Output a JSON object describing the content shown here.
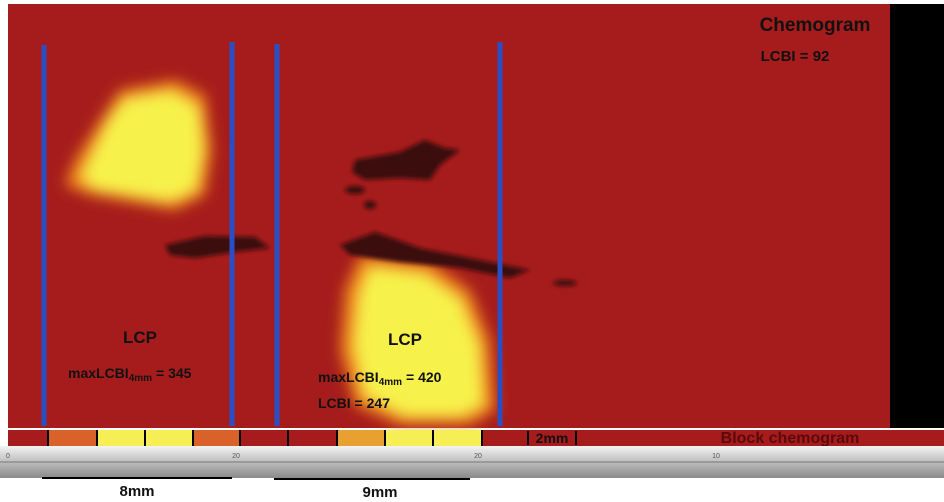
{
  "chemogram": {
    "title": "Chemogram",
    "lcbi": "LCBI = 92"
  },
  "lesions": [
    {
      "label": "LCP",
      "max_prefix": "maxLCBI",
      "max_sub": "4mm",
      "max_value": "= 345"
    },
    {
      "label": "LCP",
      "max_prefix": "maxLCBI",
      "max_sub": "4mm",
      "max_value": "= 420",
      "lcbi": "LCBI = 247"
    }
  ],
  "block": {
    "scale": "2mm",
    "title": "Block chemogram"
  },
  "ruler": {
    "labels": [
      "0",
      "20",
      "20",
      "10"
    ]
  },
  "scale_bars": [
    "8mm",
    "9mm"
  ]
}
